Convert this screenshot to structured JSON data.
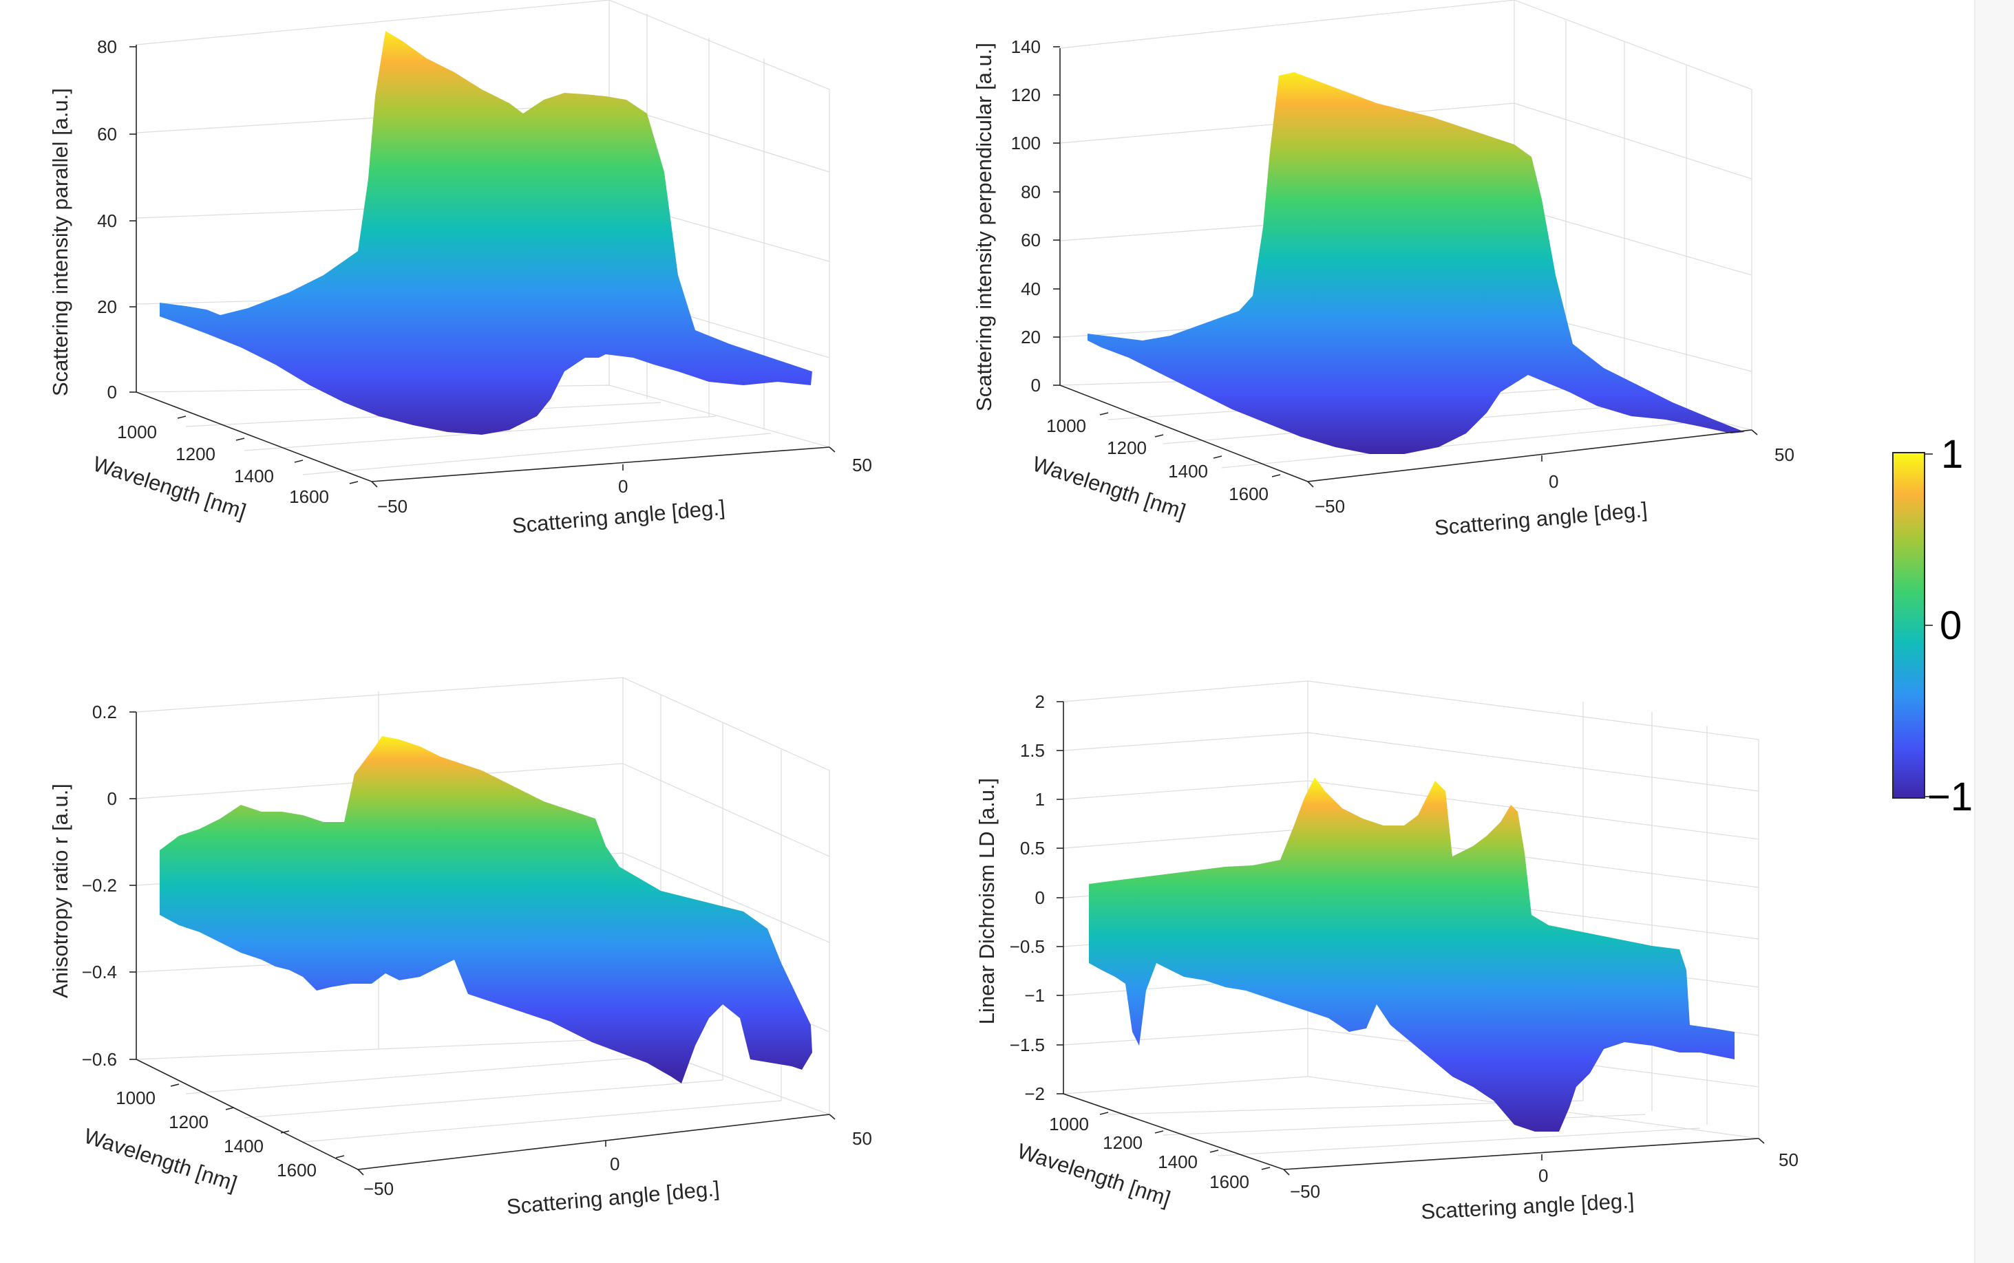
{
  "figure": {
    "colormap": [
      "#3e26a8",
      "#4351f5",
      "#2f95f1",
      "#12bdb9",
      "#3fd06e",
      "#a6c83a",
      "#fbb439",
      "#f9fb15"
    ]
  },
  "colorbar": {
    "ticks": [
      "1",
      "0",
      "−1"
    ],
    "values": [
      1,
      0,
      -1
    ]
  },
  "chart_data": [
    {
      "type": "surface",
      "id": "parallel",
      "zlabel": "Scattering intensity parallel [a.u.]",
      "xlabel": "Scattering angle [deg.]",
      "ylabel": "Wavelength [nm]",
      "x_ticks": [
        "−50",
        "0",
        "50"
      ],
      "y_ticks": [
        "1000",
        "1200",
        "1400",
        "1600"
      ],
      "z_ticks": [
        "0",
        "20",
        "40",
        "60",
        "80"
      ],
      "z_tick_values": [
        0,
        20,
        40,
        60,
        80
      ],
      "xlim": [
        -50,
        50
      ],
      "ylim": [
        900,
        1700
      ],
      "zlim": [
        0,
        80
      ]
    },
    {
      "type": "surface",
      "id": "perpendicular",
      "zlabel": "Scattering intensity perpendicular [a.u.]",
      "xlabel": "Scattering angle [deg.]",
      "ylabel": "Wavelength [nm]",
      "x_ticks": [
        "−50",
        "0",
        "50"
      ],
      "y_ticks": [
        "1000",
        "1200",
        "1400",
        "1600"
      ],
      "z_ticks": [
        "0",
        "20",
        "40",
        "60",
        "80",
        "100",
        "120",
        "140"
      ],
      "z_tick_values": [
        0,
        20,
        40,
        60,
        80,
        100,
        120,
        140
      ],
      "xlim": [
        -50,
        50
      ],
      "ylim": [
        900,
        1700
      ],
      "zlim": [
        0,
        140
      ]
    },
    {
      "type": "surface",
      "id": "anisotropy",
      "zlabel": "Anisotropy ratio r [a.u.]",
      "xlabel": "Scattering angle [deg.]",
      "ylabel": "Wavelength [nm]",
      "x_ticks": [
        "−50",
        "0",
        "50"
      ],
      "y_ticks": [
        "1000",
        "1200",
        "1400",
        "1600"
      ],
      "z_ticks": [
        "0.2",
        "0",
        "−0.2",
        "−0.4",
        "−0.6"
      ],
      "z_tick_values": [
        0.2,
        0,
        -0.2,
        -0.4,
        -0.6
      ],
      "xlim": [
        -50,
        50
      ],
      "ylim": [
        900,
        1700
      ],
      "zlim": [
        -0.6,
        0.2
      ]
    },
    {
      "type": "surface",
      "id": "dichroism",
      "zlabel": "Linear Dichroism LD [a.u.]",
      "xlabel": "Scattering angle [deg.]",
      "ylabel": "Wavelength [nm]",
      "x_ticks": [
        "−50",
        "0",
        "50"
      ],
      "y_ticks": [
        "1000",
        "1200",
        "1400",
        "1600"
      ],
      "z_ticks": [
        "2",
        "1.5",
        "1",
        "0.5",
        "0",
        "−0.5",
        "−1",
        "−1.5",
        "−2"
      ],
      "z_tick_values": [
        2,
        1.5,
        1,
        0.5,
        0,
        -0.5,
        -1,
        -1.5,
        -2
      ],
      "xlim": [
        -50,
        50
      ],
      "ylim": [
        900,
        1700
      ],
      "zlim": [
        -2,
        2
      ]
    }
  ]
}
